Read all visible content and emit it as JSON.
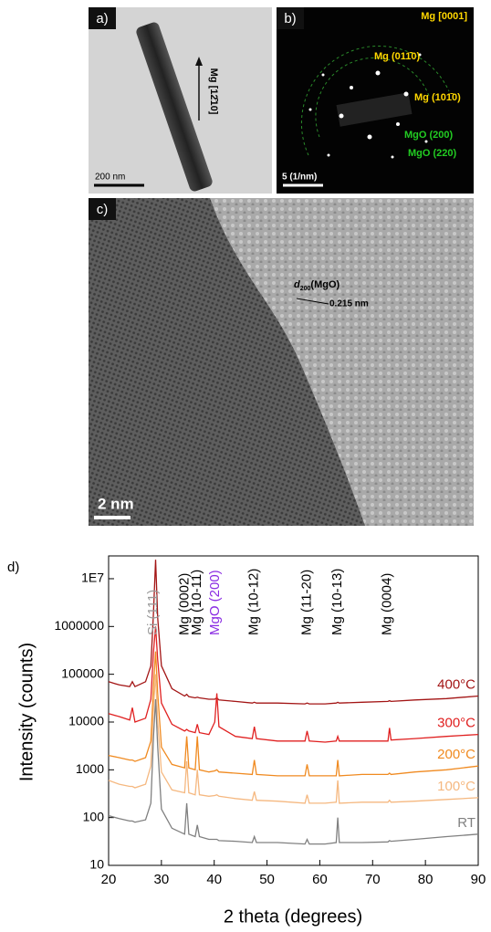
{
  "panels": {
    "a": {
      "label": "a)",
      "scale_bar": "200 nm",
      "direction": "Mg [12̄10]"
    },
    "b": {
      "label": "b)",
      "zone": "Mg [0001]",
      "scale_bar": "5 (1/nm)",
      "spots": [
        "Mg (011̄0)",
        "Mg (101̄0)",
        "MgO (200)",
        "MgO (220)"
      ]
    },
    "c": {
      "label": "c)",
      "scale_bar": "2 nm",
      "d_symbol": "d",
      "d_sub": "200",
      "d_rest": "(MgO)",
      "spacing": "0.215 nm"
    }
  },
  "chart_data": {
    "type": "line",
    "panel_label": "d)",
    "x_label": "2 theta (degrees)",
    "y_label": "Intensity (counts)",
    "log_y": true,
    "xlim": [
      20,
      90
    ],
    "xticks": [
      20,
      30,
      40,
      50,
      60,
      70,
      80,
      90
    ],
    "ylim": [
      10,
      30000000
    ],
    "yticks": [
      10,
      100,
      1000,
      10000,
      100000,
      1000000,
      {
        "value": 10000000,
        "label": "1E7"
      }
    ],
    "x": [
      20,
      22,
      24,
      24.5,
      25,
      27,
      28,
      28.5,
      28.9,
      29.3,
      30,
      32,
      34.4,
      34.8,
      35.2,
      36.4,
      36.8,
      37.2,
      39,
      40.1,
      40.5,
      40.9,
      44,
      47.2,
      47.6,
      48,
      52,
      57.2,
      57.6,
      58,
      61,
      63.1,
      63.4,
      63.7,
      68,
      72.9,
      73.2,
      73.5,
      78,
      84,
      90
    ],
    "series": [
      {
        "name": "400°C",
        "color": "#a31515",
        "values": [
          70000,
          60000,
          55000,
          70000,
          55000,
          70000,
          150000,
          2000000,
          25000000,
          1500000,
          150000,
          50000,
          35000,
          38000,
          34000,
          32000,
          33000,
          32000,
          30000,
          30000,
          32000,
          29000,
          27000,
          25000,
          26000,
          25000,
          25000,
          24000,
          25000,
          24000,
          24000,
          25000,
          26000,
          25000,
          26000,
          27000,
          28000,
          27000,
          29000,
          31000,
          35000
        ]
      },
      {
        "name": "300°C",
        "color": "#e02020",
        "values": [
          15000,
          13000,
          11000,
          20000,
          10000,
          12000,
          30000,
          300000,
          1000000,
          200000,
          25000,
          9000,
          6500,
          7000,
          6500,
          6000,
          9000,
          6000,
          5500,
          10000,
          40000,
          8000,
          5000,
          4500,
          8000,
          4500,
          4000,
          4000,
          6500,
          4000,
          3800,
          4000,
          5000,
          4000,
          4000,
          4000,
          7500,
          4200,
          4500,
          5000,
          5500
        ]
      },
      {
        "name": "200°C",
        "color": "#f08a20",
        "values": [
          2000,
          1800,
          1600,
          1600,
          1500,
          1800,
          4000,
          60000,
          300000,
          40000,
          3000,
          1300,
          1100,
          5000,
          1100,
          1000,
          5000,
          1000,
          900,
          950,
          1000,
          900,
          850,
          800,
          1600,
          800,
          750,
          750,
          1300,
          750,
          750,
          750,
          1600,
          750,
          800,
          800,
          850,
          800,
          900,
          1000,
          1200
        ]
      },
      {
        "name": "100°C",
        "color": "#f5b880",
        "values": [
          600,
          500,
          450,
          450,
          420,
          500,
          1200,
          20000,
          100000,
          10000,
          900,
          380,
          330,
          1500,
          330,
          300,
          1000,
          300,
          280,
          290,
          300,
          280,
          250,
          230,
          350,
          230,
          220,
          200,
          300,
          200,
          200,
          210,
          600,
          200,
          210,
          210,
          230,
          210,
          220,
          240,
          260
        ]
      },
      {
        "name": "RT",
        "color": "#808080",
        "values": [
          110,
          95,
          85,
          85,
          80,
          90,
          200,
          5000,
          30000,
          3000,
          150,
          60,
          45,
          200,
          45,
          40,
          70,
          40,
          35,
          35,
          35,
          33,
          32,
          30,
          40,
          30,
          30,
          28,
          35,
          28,
          28,
          30,
          100,
          30,
          30,
          31,
          33,
          32,
          35,
          40,
          45
        ]
      }
    ],
    "annotations": [
      {
        "text": "Si (111)",
        "x": 28.5,
        "color": "#999999"
      },
      {
        "text": "Mg (0002)",
        "x": 34.4,
        "color": "#000000"
      },
      {
        "text": "Mg (10-11)",
        "x": 36.8,
        "color": "#000000"
      },
      {
        "text": "MgO (200)",
        "x": 40.2,
        "color": "#8a2be2"
      },
      {
        "text": "Mg (10-12)",
        "x": 47.6,
        "color": "#000000"
      },
      {
        "text": "Mg (11-20)",
        "x": 57.6,
        "color": "#000000"
      },
      {
        "text": "Mg (10-13)",
        "x": 63.4,
        "color": "#000000"
      },
      {
        "text": "Mg (0004)",
        "x": 72.8,
        "color": "#000000"
      }
    ]
  }
}
